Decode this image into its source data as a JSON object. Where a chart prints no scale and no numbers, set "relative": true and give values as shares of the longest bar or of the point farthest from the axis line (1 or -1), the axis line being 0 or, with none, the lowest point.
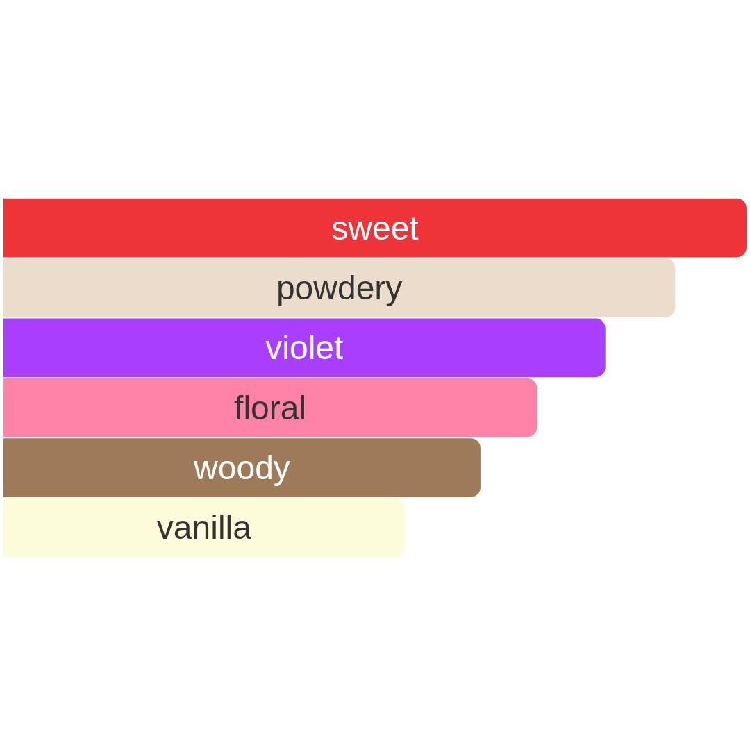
{
  "chart_data": {
    "type": "bar",
    "orientation": "horizontal",
    "relative": true,
    "categories": [
      "sweet",
      "powdery",
      "violet",
      "floral",
      "woody",
      "vanilla"
    ],
    "values": [
      1,
      0.904,
      0.81,
      0.718,
      0.642,
      0.54
    ],
    "colors": [
      "#ee3439",
      "#ecdccb",
      "#a93ffe",
      "#fe83a7",
      "#9e7a59",
      "#fdfcda"
    ]
  }
}
